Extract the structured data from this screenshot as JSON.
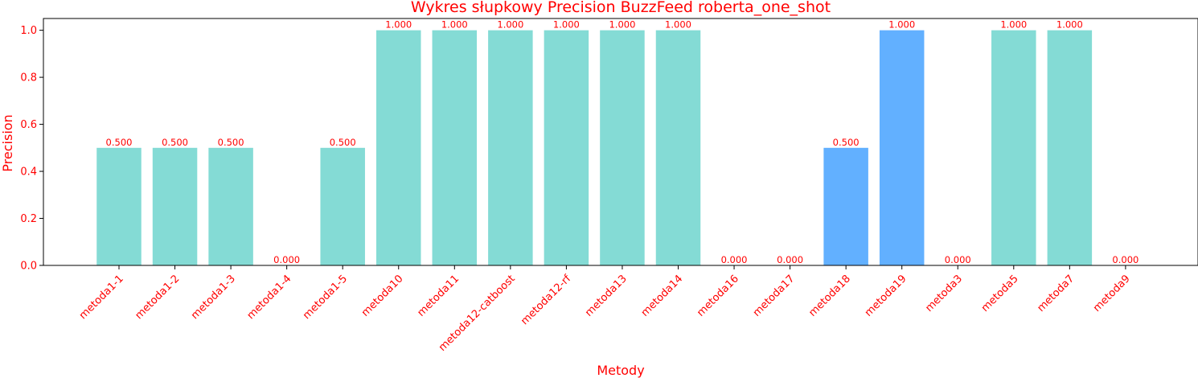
{
  "chart_data": {
    "type": "bar",
    "title": "Wykres słupkowy Precision BuzzFeed roberta_one_shot",
    "xlabel": "Metody",
    "ylabel": "Precision",
    "ylim": [
      0,
      1.05
    ],
    "yticks": [
      "0.0",
      "0.2",
      "0.4",
      "0.6",
      "0.8",
      "1.0"
    ],
    "grid": false,
    "categories": [
      "metoda1-1",
      "metoda1-2",
      "metoda1-3",
      "metoda1-4",
      "metoda1-5",
      "metoda10",
      "metoda11",
      "metoda12-catboost",
      "metoda12-rf",
      "metoda13",
      "metoda14",
      "metoda16",
      "metoda17",
      "metoda18",
      "metoda19",
      "metoda3",
      "metoda5",
      "metoda7",
      "metoda9"
    ],
    "values": [
      0.5,
      0.5,
      0.5,
      0.0,
      0.5,
      1.0,
      1.0,
      1.0,
      1.0,
      1.0,
      1.0,
      0.0,
      0.0,
      0.5,
      1.0,
      0.0,
      1.0,
      1.0,
      0.0
    ],
    "value_labels": [
      "0.500",
      "0.500",
      "0.500",
      "0.000",
      "0.500",
      "1.000",
      "1.000",
      "1.000",
      "1.000",
      "1.000",
      "1.000",
      "0.000",
      "0.000",
      "0.500",
      "1.000",
      "0.000",
      "1.000",
      "1.000",
      "0.000"
    ],
    "bar_colors": [
      "#84dbd5",
      "#84dbd5",
      "#84dbd5",
      "#84dbd5",
      "#84dbd5",
      "#84dbd5",
      "#84dbd5",
      "#84dbd5",
      "#84dbd5",
      "#84dbd5",
      "#84dbd5",
      "#84dbd5",
      "#84dbd5",
      "#62b0ff",
      "#62b0ff",
      "#84dbd5",
      "#84dbd5",
      "#84dbd5",
      "#84dbd5"
    ],
    "text_color": "#ff0000"
  }
}
